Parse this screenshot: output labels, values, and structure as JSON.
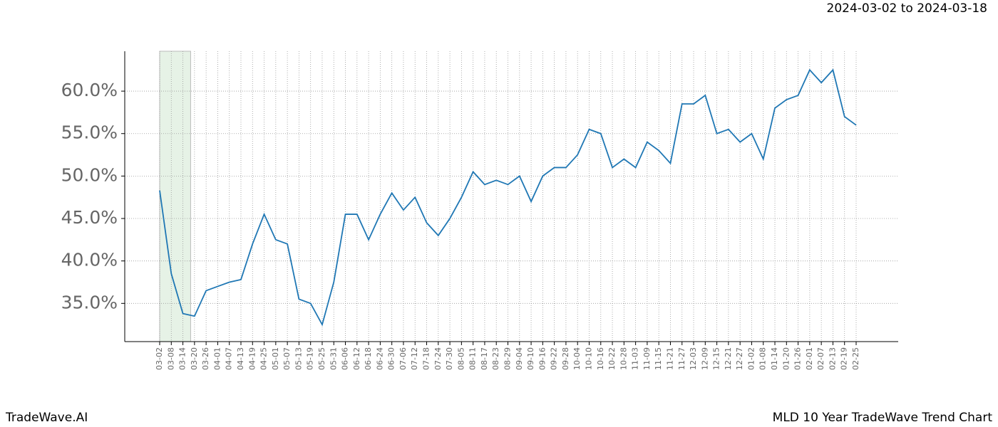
{
  "chart_data": {
    "type": "line",
    "title": "MLD 10 Year TradeWave Trend Chart",
    "subtitle": "2024-03-02 to 2024-03-18",
    "brand": "TradeWave.AI",
    "highlight": [
      "03-02",
      "03-18"
    ],
    "highlight_color": "#e6f2e6",
    "categories": [
      "03-02",
      "03-08",
      "03-14",
      "03-20",
      "03-26",
      "04-01",
      "04-07",
      "04-13",
      "04-19",
      "04-25",
      "05-01",
      "05-07",
      "05-13",
      "05-19",
      "05-25",
      "05-31",
      "06-06",
      "06-12",
      "06-18",
      "06-24",
      "06-30",
      "07-06",
      "07-12",
      "07-18",
      "07-24",
      "07-30",
      "08-05",
      "08-11",
      "08-17",
      "08-23",
      "08-29",
      "09-04",
      "09-10",
      "09-16",
      "09-22",
      "09-28",
      "10-04",
      "10-10",
      "10-16",
      "10-22",
      "10-28",
      "11-03",
      "11-09",
      "11-15",
      "11-21",
      "11-27",
      "12-03",
      "12-09",
      "12-15",
      "12-21",
      "12-27",
      "01-02",
      "01-08",
      "01-14",
      "01-20",
      "01-26",
      "02-01",
      "02-07",
      "02-13",
      "02-19",
      "02-25"
    ],
    "series": [
      {
        "color": "#1f77b4",
        "values": [
          48.3,
          38.5,
          33.8,
          33.5,
          36.5,
          37.0,
          37.5,
          37.8,
          42,
          45.5,
          42.5,
          42,
          35.5,
          35,
          32.5,
          37.5,
          45.5,
          45.5,
          42.5,
          45.5,
          48,
          46,
          47.5,
          44.5,
          43,
          45,
          47.5,
          50.5,
          49,
          49.5,
          49,
          50,
          47,
          50,
          51,
          51,
          52.5,
          55.5,
          55,
          51,
          52,
          51,
          54,
          53,
          51.5,
          58.5,
          58.5,
          59.5,
          55,
          55.5,
          54,
          55,
          52,
          58,
          59,
          59.5,
          62.5,
          61,
          62.5,
          57,
          56
        ]
      }
    ],
    "ylim": [
      30.5,
      64.7
    ],
    "yticks": [
      {
        "value": 35,
        "label": "35.0%"
      },
      {
        "value": 40,
        "label": "40.0%"
      },
      {
        "value": 45,
        "label": "45.0%"
      },
      {
        "value": 50,
        "label": "50.0%"
      },
      {
        "value": 55,
        "label": "55.0%"
      },
      {
        "value": 60,
        "label": "60.0%"
      }
    ],
    "grid": true
  }
}
